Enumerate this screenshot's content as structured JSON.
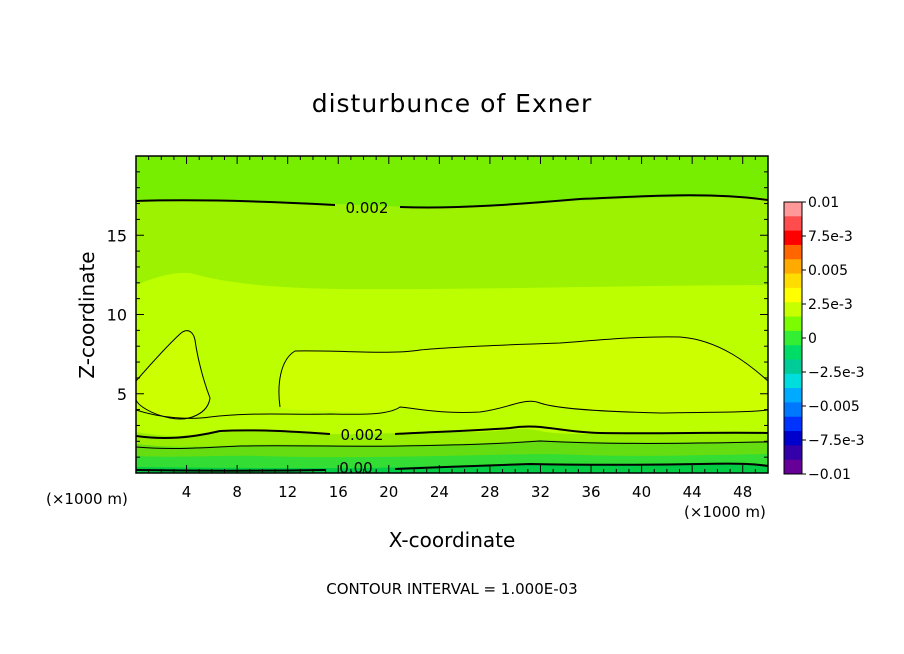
{
  "chart_data": {
    "type": "contour",
    "title": "disturbunce of Exner",
    "xlabel": "X-coordinate",
    "ylabel": "Z-coordinate",
    "x_unit_label_left": "(×1000 m)",
    "x_unit_label_right": "(×1000 m)",
    "footer": "CONTOUR INTERVAL = 1.000E-03",
    "xlim": [
      0,
      50
    ],
    "ylim": [
      0,
      20
    ],
    "x_ticks": [
      4,
      8,
      12,
      16,
      20,
      24,
      28,
      32,
      36,
      40,
      44,
      48
    ],
    "y_ticks": [
      5,
      10,
      15
    ],
    "contour_labels": [
      {
        "text": "0.002",
        "x": 18.5,
        "y": 16.8
      },
      {
        "text": "0.002",
        "x": 18.0,
        "y": 2.5
      },
      {
        "text": "0.00",
        "x": 17.5,
        "y": 0.2
      }
    ],
    "colorbar": {
      "labels": [
        "0.01",
        "7.5e-3",
        "0.005",
        "2.5e-3",
        "0",
        "−2.5e-3",
        "−0.005",
        "−7.5e-3",
        "−0.01"
      ],
      "colors": [
        "#ff9999",
        "#ff4d4d",
        "#ff0000",
        "#ff6600",
        "#ffaa00",
        "#ffdd00",
        "#ffff00",
        "#c8ff00",
        "#7cfc00",
        "#33ee33",
        "#00dd66",
        "#00cc99",
        "#00dddd",
        "#00aaff",
        "#0077ff",
        "#0033ff",
        "#0000cc",
        "#3300aa",
        "#660099"
      ]
    },
    "fill_colors": {
      "top": "#77ee00",
      "upper_band": "#9cf200",
      "mid_band": "#bbff00",
      "core": "#ccff00",
      "low_1": "#99ee00",
      "low_2": "#66dd11",
      "low_3": "#33dd33",
      "ground": "#00cc44"
    }
  }
}
